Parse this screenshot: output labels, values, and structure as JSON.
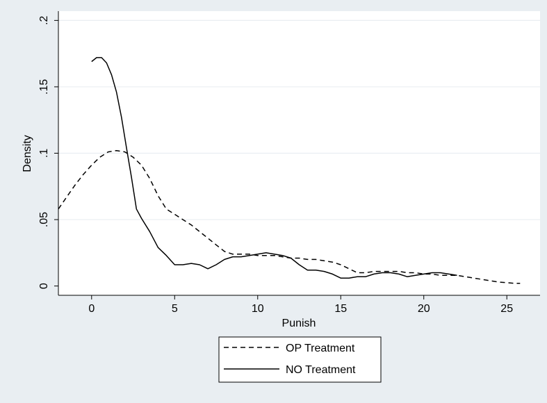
{
  "chart_data": {
    "type": "line",
    "title": "",
    "xlabel": "Punish",
    "ylabel": "Density",
    "xlim": [
      -2,
      27
    ],
    "ylim": [
      -0.007,
      0.207
    ],
    "x_ticks": [
      0,
      5,
      10,
      15,
      20,
      25
    ],
    "x_tick_labels": [
      "0",
      "5",
      "10",
      "15",
      "20",
      "25"
    ],
    "y_ticks": [
      0,
      0.05,
      0.1,
      0.15,
      0.2
    ],
    "y_tick_labels": [
      "0",
      ".05",
      ".1",
      ".15",
      ".2"
    ],
    "grid": "horizontal",
    "legend_position": "bottom",
    "series": [
      {
        "name": "OP Treatment",
        "style": "dashed",
        "color": "#000000",
        "x": [
          -2,
          -1.5,
          -1,
          -0.5,
          0,
          0.5,
          1,
          1.5,
          2,
          2.5,
          3,
          3.5,
          4,
          4.5,
          5,
          5.5,
          6,
          6.5,
          7,
          7.5,
          8,
          8.5,
          9,
          9.5,
          10,
          10.5,
          11,
          11.5,
          12,
          12.5,
          13,
          13.5,
          14,
          14.5,
          15,
          15.5,
          16,
          16.5,
          17,
          17.5,
          18,
          18.5,
          19,
          19.5,
          20,
          20.5,
          21,
          21.5,
          22,
          22.5,
          23,
          23.5,
          24,
          24.5,
          25,
          25.5,
          25.8
        ],
        "y": [
          0.058,
          0.067,
          0.076,
          0.084,
          0.091,
          0.097,
          0.101,
          0.102,
          0.101,
          0.097,
          0.091,
          0.081,
          0.068,
          0.058,
          0.054,
          0.05,
          0.046,
          0.041,
          0.036,
          0.031,
          0.026,
          0.024,
          0.024,
          0.024,
          0.023,
          0.023,
          0.023,
          0.022,
          0.021,
          0.021,
          0.02,
          0.02,
          0.019,
          0.018,
          0.016,
          0.013,
          0.01,
          0.01,
          0.011,
          0.011,
          0.011,
          0.011,
          0.01,
          0.01,
          0.009,
          0.009,
          0.008,
          0.008,
          0.008,
          0.007,
          0.006,
          0.005,
          0.004,
          0.003,
          0.0025,
          0.002,
          0.002
        ]
      },
      {
        "name": "NO Treatment",
        "style": "solid",
        "color": "#000000",
        "x": [
          0,
          0.3,
          0.6,
          0.9,
          1.2,
          1.5,
          1.8,
          2.1,
          2.4,
          2.7,
          3.0,
          3.5,
          4.0,
          4.5,
          5.0,
          5.5,
          6.0,
          6.5,
          7.0,
          7.5,
          8.0,
          8.5,
          9.0,
          9.5,
          10.0,
          10.5,
          11.0,
          11.5,
          12.0,
          12.5,
          13.0,
          13.5,
          14.0,
          14.5,
          15.0,
          15.5,
          16.0,
          16.5,
          17.0,
          17.5,
          18.0,
          18.5,
          19.0,
          19.5,
          20.0,
          20.5,
          21.0,
          21.5,
          22.0
        ],
        "y": [
          0.169,
          0.172,
          0.172,
          0.168,
          0.159,
          0.146,
          0.127,
          0.104,
          0.082,
          0.058,
          0.051,
          0.041,
          0.029,
          0.023,
          0.016,
          0.016,
          0.017,
          0.016,
          0.013,
          0.016,
          0.02,
          0.022,
          0.022,
          0.023,
          0.024,
          0.025,
          0.024,
          0.023,
          0.021,
          0.016,
          0.012,
          0.012,
          0.011,
          0.009,
          0.006,
          0.006,
          0.007,
          0.007,
          0.009,
          0.01,
          0.01,
          0.009,
          0.007,
          0.008,
          0.009,
          0.01,
          0.01,
          0.009,
          0.008
        ]
      }
    ]
  },
  "colors": {
    "background": "#e9eef2",
    "plot_area": "#ffffff",
    "grid": "#e9eef2",
    "line": "#000000"
  }
}
